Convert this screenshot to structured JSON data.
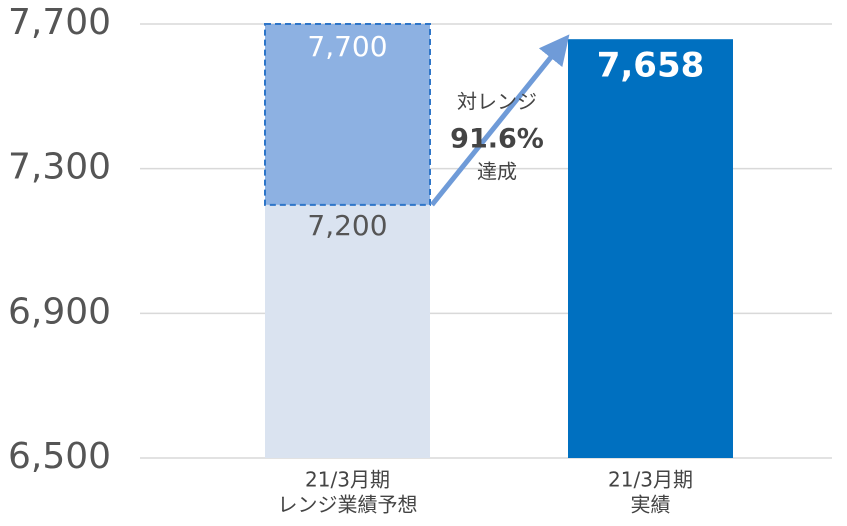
{
  "chart_data": {
    "type": "bar",
    "categories": [
      [
        "21/3月期",
        "レンジ業績予想"
      ],
      [
        "21/3月期",
        "実績"
      ]
    ],
    "values": [
      7200,
      7658
    ],
    "value_labels": [
      "7,200",
      "7,658"
    ],
    "colors": [
      "#dae3f0",
      "#0070c0"
    ],
    "range_high": [
      7700,
      null
    ],
    "range_high_labels": [
      "7,700",
      null
    ],
    "range_color": "#8db1e2",
    "annotation": [
      "対レンジ",
      "91.6%",
      "達成"
    ],
    "ylim": [
      6500,
      7700
    ],
    "yticks": [
      {
        "value": 6500,
        "label": "6,500"
      },
      {
        "value": 6900,
        "label": "6,900"
      },
      {
        "value": 7300,
        "label": "7,300"
      },
      {
        "value": 7700,
        "label": "7,700"
      }
    ],
    "grid": true
  }
}
